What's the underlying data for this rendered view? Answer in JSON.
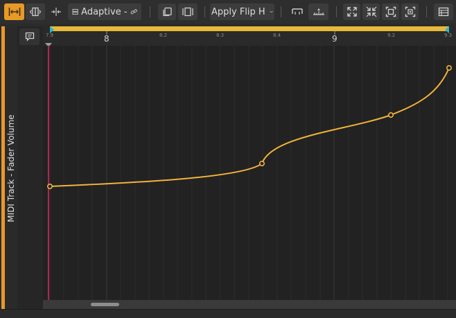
{
  "toolbar": {
    "adaptive_label": "Adaptive -",
    "apply_label": "Apply Flip H"
  },
  "track": {
    "name": "MIDI Track - Fader Volume"
  },
  "ruler": {
    "ticks": [
      {
        "label": "7.9",
        "major": false
      },
      {
        "label": "8",
        "major": true
      },
      {
        "label": "8.2",
        "major": false
      },
      {
        "label": "8.3",
        "major": false
      },
      {
        "label": "8.4",
        "major": false
      },
      {
        "label": "9",
        "major": true
      },
      {
        "label": "9.2",
        "major": false
      },
      {
        "label": "9.3",
        "major": false
      }
    ]
  },
  "colors": {
    "accent": "#e89a26",
    "curve": "#f2b43a",
    "playhead": "#d6245e",
    "loop": "#e6b93a",
    "loop_marker": "#2bb5d4"
  },
  "icons": [
    "fit-icon",
    "split-icon",
    "cursor-icon",
    "layout-icon",
    "link-icon",
    "copy-icon",
    "columns-icon",
    "chevron-down-icon",
    "bracket-icon",
    "ruler-icon",
    "expand-icon",
    "collapse-icon",
    "frame-icon",
    "focus-icon",
    "list-icon",
    "comment-icon"
  ]
}
